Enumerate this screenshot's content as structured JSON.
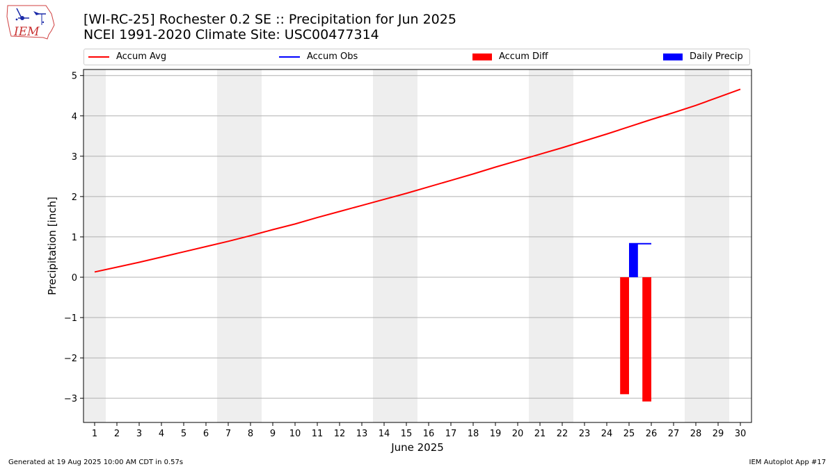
{
  "header": {
    "title_line1": "[WI-RC-25] Rochester 0.2 SE :: Precipitation for Jun 2025",
    "title_line2": "NCEI 1991-2020 Climate Site: USC00477314",
    "logo_text": "IEM"
  },
  "legend": {
    "items": [
      {
        "label": "Accum Avg",
        "kind": "line",
        "color": "#ff0000"
      },
      {
        "label": "Accum Obs",
        "kind": "line",
        "color": "#0000ff"
      },
      {
        "label": "Accum Diff",
        "kind": "bar",
        "color": "#ff0000"
      },
      {
        "label": "Daily Precip",
        "kind": "bar",
        "color": "#0000ff"
      }
    ]
  },
  "footer": {
    "left": "Generated at 19 Aug 2025 10:00 AM CDT in 0.57s",
    "right": "IEM Autoplot App #17"
  },
  "chart_data": {
    "type": "bar",
    "xlabel": "June 2025",
    "ylabel": "Precipitation [inch]",
    "xlim": [
      0.5,
      30.5
    ],
    "ylim": [
      -3.6,
      5.15
    ],
    "x_ticks": [
      1,
      2,
      3,
      4,
      5,
      6,
      7,
      8,
      9,
      10,
      11,
      12,
      13,
      14,
      15,
      16,
      17,
      18,
      19,
      20,
      21,
      22,
      23,
      24,
      25,
      26,
      27,
      28,
      29,
      30
    ],
    "y_ticks": [
      -3,
      -2,
      -1,
      0,
      1,
      2,
      3,
      4,
      5
    ],
    "y_tick_labels": [
      "−3",
      "−2",
      "−1",
      "0",
      "1",
      "2",
      "3",
      "4",
      "5"
    ],
    "grid": "horizontal",
    "weekend_shading_days": [
      1,
      7,
      8,
      14,
      15,
      21,
      22,
      28,
      29
    ],
    "weekend_shade_color": "#eeeeee",
    "series": [
      {
        "name": "Accum Avg",
        "type": "line",
        "color": "#ff0000",
        "x": [
          1,
          2,
          3,
          4,
          5,
          6,
          7,
          8,
          9,
          10,
          11,
          12,
          13,
          14,
          15,
          16,
          17,
          18,
          19,
          20,
          21,
          22,
          23,
          24,
          25,
          26,
          27,
          28,
          29,
          30
        ],
        "values": [
          0.13,
          0.25,
          0.37,
          0.5,
          0.63,
          0.76,
          0.89,
          1.03,
          1.18,
          1.32,
          1.48,
          1.63,
          1.78,
          1.93,
          2.08,
          2.24,
          2.4,
          2.56,
          2.73,
          2.89,
          3.05,
          3.21,
          3.38,
          3.55,
          3.73,
          3.91,
          4.08,
          4.26,
          4.46,
          4.66
        ]
      },
      {
        "name": "Accum Obs",
        "type": "line",
        "color": "#0000ff",
        "x": [
          25,
          26
        ],
        "values": [
          0.83,
          0.83
        ]
      },
      {
        "name": "Accum Diff",
        "type": "bar",
        "color": "#ff0000",
        "x": [
          24.8,
          25.8
        ],
        "values": [
          -2.9,
          -3.08
        ]
      },
      {
        "name": "Daily Precip",
        "type": "bar",
        "color": "#0000ff",
        "x": [
          25.2
        ],
        "values": [
          0.83
        ]
      }
    ]
  }
}
